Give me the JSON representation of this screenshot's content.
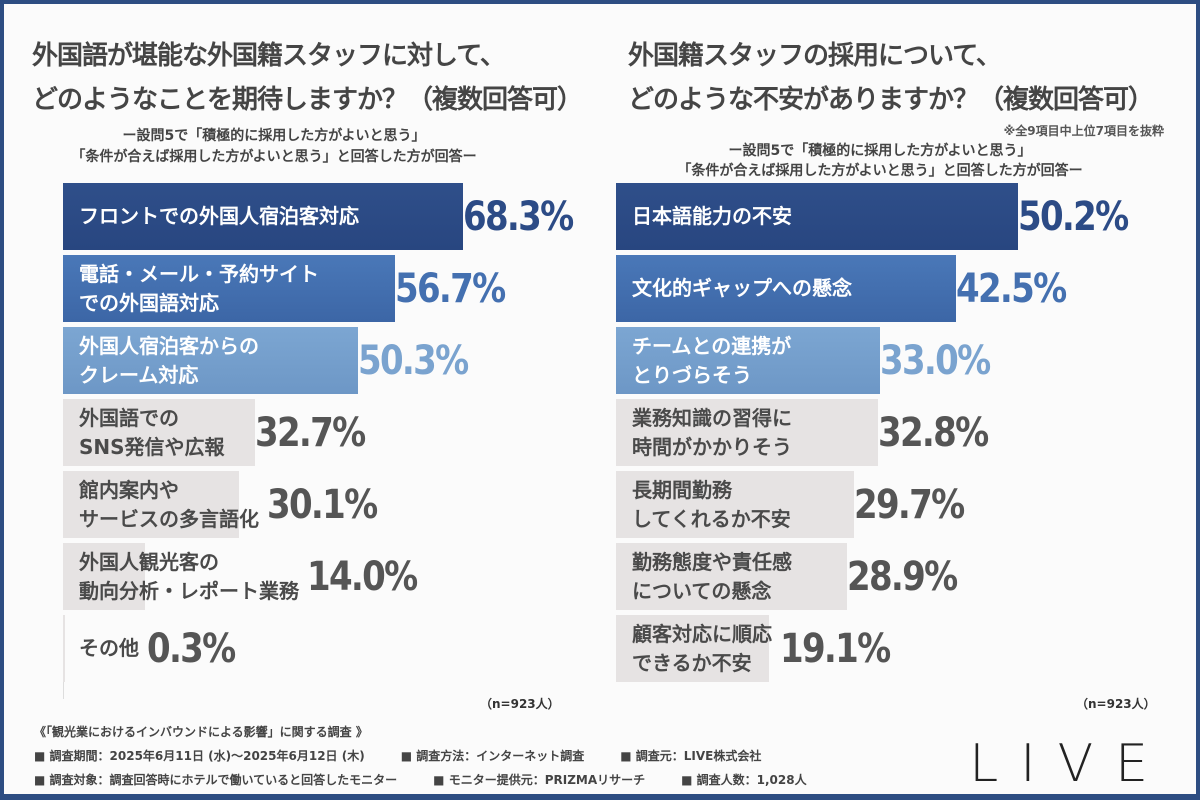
{
  "chart_data": [
    {
      "type": "bar",
      "orientation": "horizontal",
      "title": "外国語が堪能な外国籍スタッフに対して、\nどのようなことを期待しますか？（複数回答可）",
      "subtitle": "ー設問5で「積極的に採用した方がよいと思う」\n「条件が合えば採用した方がよいと思う」と回答した方が回答ー",
      "note": "",
      "categories": [
        "フロントでの外国人宿泊客対応",
        "電話・メール・予約サイト\nでの外国語対応",
        "外国人宿泊客からの\nクレーム対応",
        "外国語での\nSNS発信や広報",
        "館内案内や\nサービスの多言語化",
        "外国人観光客の\n動向分析・レポート業務",
        "その他"
      ],
      "values": [
        68.3,
        56.7,
        50.3,
        32.7,
        30.1,
        14.0,
        0.3
      ],
      "labels": [
        "68.3%",
        "56.7%",
        "50.3%",
        "32.7%",
        "30.1%",
        "14.0%",
        "0.3%"
      ],
      "sample": "（n=923人）"
    },
    {
      "type": "bar",
      "orientation": "horizontal",
      "title": "外国籍スタッフの採用について、\nどのような不安がありますか？（複数回答可）",
      "subtitle": "ー設問5で「積極的に採用した方がよいと思う」\n「条件が合えば採用した方がよいと思う」と回答した方が回答ー",
      "note": "※全9項目中上位7項目を抜粋",
      "categories": [
        "日本語能力の不安",
        "文化的ギャップへの懸念",
        "チームとの連携が\nとりづらそう",
        "業務知識の習得に\n時間がかかりそう",
        "長期間勤務\nしてくれるか不安",
        "勤務態度や責任感\nについての懸念",
        "顧客対応に順応\nできるか不安"
      ],
      "values": [
        50.2,
        42.5,
        33.0,
        32.8,
        29.7,
        28.9,
        19.1
      ],
      "labels": [
        "50.2%",
        "42.5%",
        "33.0%",
        "32.8%",
        "29.7%",
        "28.9%",
        "19.1%"
      ],
      "sample": "（n=923人）"
    }
  ],
  "colors": {
    "top1": "#2c4b86",
    "top2": "#4470b0",
    "top3": "#7aa3cf",
    "other": "#e6e3e3",
    "frame": "#2d4d82"
  },
  "footer": {
    "heading": "《「観光業におけるインバウンドによる影響」に関する調査 》",
    "period": "■ 調査期間：2025年6月11日 (水)～2025年6月12日 (木)",
    "method": "■ 調査方法：インターネット調査",
    "source": "■ 調査元：LIVE株式会社",
    "target": "■ 調査対象：調査回答時にホテルで働いていると回答したモニター",
    "provider": "■ モニター提供元：PRIZMAリサーチ",
    "count": "■ 調査人数：1,028人"
  },
  "logo": "LIVE"
}
